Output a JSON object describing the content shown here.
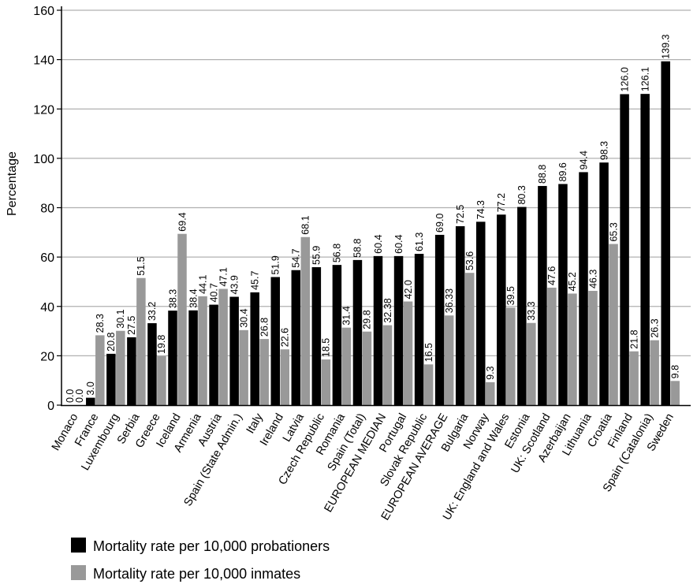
{
  "chart_data": {
    "type": "bar",
    "title": "",
    "ylabel": "Percentage",
    "xlabel": "",
    "ylim": [
      0,
      160
    ],
    "yticks": [
      0,
      20,
      40,
      60,
      80,
      100,
      120,
      140,
      160
    ],
    "grid": true,
    "legend_position": "bottom-left",
    "categories": [
      "Monaco",
      "France",
      "Luxembourg",
      "Serbia",
      "Greece",
      "Iceland",
      "Armenia",
      "Austria",
      "Spain (State Admin.)",
      "Italy",
      "Ireland",
      "Latvia",
      "Czech Republic",
      "Romania",
      "Spain (Total)",
      "EUROPEAN MEDIAN",
      "Portugal",
      "Slovak Republic",
      "EUROPEAN AVERAGE",
      "Bulgaria",
      "Norway",
      "UK: England and Wales",
      "Estonia",
      "UK: Scotland",
      "Azerbaijan",
      "Lithuania",
      "Croatia",
      "Finland",
      "Spain (Catalonia)",
      "Sweden"
    ],
    "series": [
      {
        "name": "Mortality rate per 10,000 probationers",
        "color": "#000000",
        "values": [
          0.0,
          3.0,
          20.8,
          27.5,
          33.2,
          38.3,
          38.4,
          40.7,
          43.9,
          45.7,
          51.9,
          54.7,
          55.9,
          56.8,
          58.8,
          60.4,
          60.4,
          61.3,
          69.0,
          72.5,
          74.3,
          77.2,
          80.3,
          88.8,
          89.6,
          94.4,
          98.3,
          126.0,
          126.1,
          139.3
        ],
        "labels": [
          "0.0",
          "3.0",
          "20.8",
          "27.5",
          "33.2",
          "38.3",
          "38.4",
          "40.7",
          "43.9",
          "45.7",
          "51.9",
          "54.7",
          "55.9",
          "56.8",
          "58.8",
          "60.4",
          "60.4",
          "61.3",
          "69.0",
          "72.5",
          "74.3",
          "77.2",
          "80.3",
          "88.8",
          "89.6",
          "94.4",
          "98.3",
          "126.0",
          "126.1",
          "139.3"
        ]
      },
      {
        "name": "Mortality rate per 10,000 inmates",
        "color": "#999999",
        "values": [
          0.0,
          28.3,
          30.1,
          51.5,
          19.8,
          69.4,
          44.1,
          47.1,
          30.4,
          26.8,
          22.6,
          68.1,
          18.5,
          31.4,
          29.8,
          32.38,
          42.0,
          16.5,
          36.33,
          53.6,
          9.3,
          39.5,
          33.3,
          47.6,
          45.2,
          46.3,
          65.3,
          21.8,
          26.3,
          9.8
        ],
        "labels": [
          "0.0",
          "28.3",
          "30.1",
          "51.5",
          "19.8",
          "69.4",
          "44.1",
          "47.1",
          "30.4",
          "26.8",
          "22.6",
          "68.1",
          "18.5",
          "31.4",
          "29.8",
          "32.38",
          "42.0",
          "16.5",
          "36.33",
          "53.6",
          "9.3",
          "39.5",
          "33.3",
          "47.6",
          "45.2",
          "46.3",
          "65.3",
          "21.8",
          "26.3",
          "9.8"
        ]
      }
    ]
  }
}
